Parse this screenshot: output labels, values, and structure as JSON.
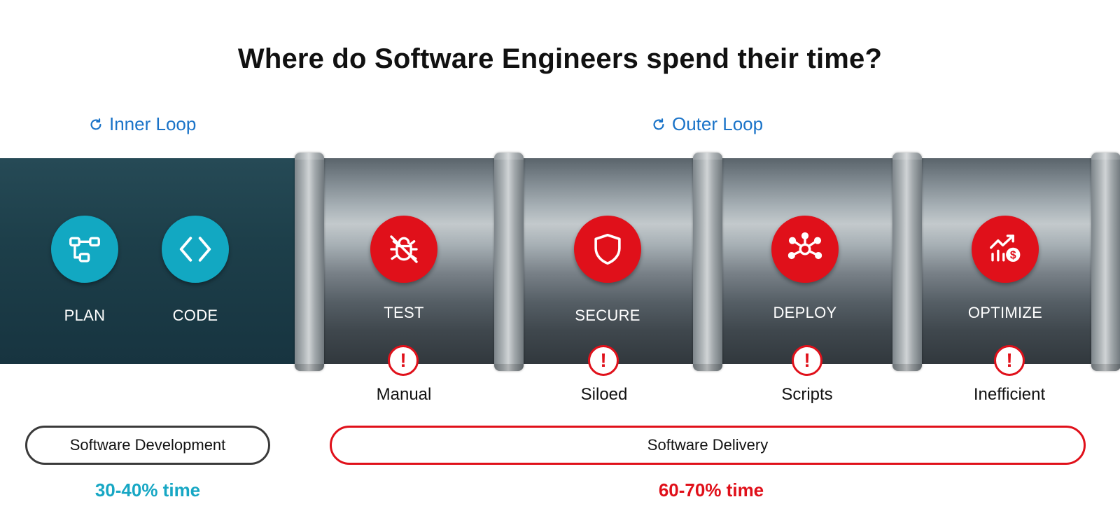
{
  "title": "Where do Software Engineers spend their time?",
  "loops": {
    "inner": "Inner Loop",
    "outer": "Outer Loop"
  },
  "stages": [
    {
      "label": "PLAN",
      "icon": "workflow-icon",
      "color": "#12a8c2"
    },
    {
      "label": "CODE",
      "icon": "code-brackets-icon",
      "color": "#12a8c2"
    },
    {
      "label": "TEST",
      "icon": "bug-off-icon",
      "color": "#e0101a",
      "issue": "Manual"
    },
    {
      "label": "SECURE",
      "icon": "shield-icon",
      "color": "#e0101a",
      "issue": "Siloed"
    },
    {
      "label": "DEPLOY",
      "icon": "network-hub-icon",
      "color": "#e0101a",
      "issue": "Scripts"
    },
    {
      "label": "OPTIMIZE",
      "icon": "chart-dollar-icon",
      "color": "#e0101a",
      "issue": "Inefficient"
    }
  ],
  "warning_symbol": "!",
  "phases": {
    "development": {
      "label": "Software Development",
      "time": "30-40% time",
      "color": "#17a7c4"
    },
    "delivery": {
      "label": "Software Delivery",
      "time": "60-70% time",
      "color": "#e0101a"
    }
  }
}
